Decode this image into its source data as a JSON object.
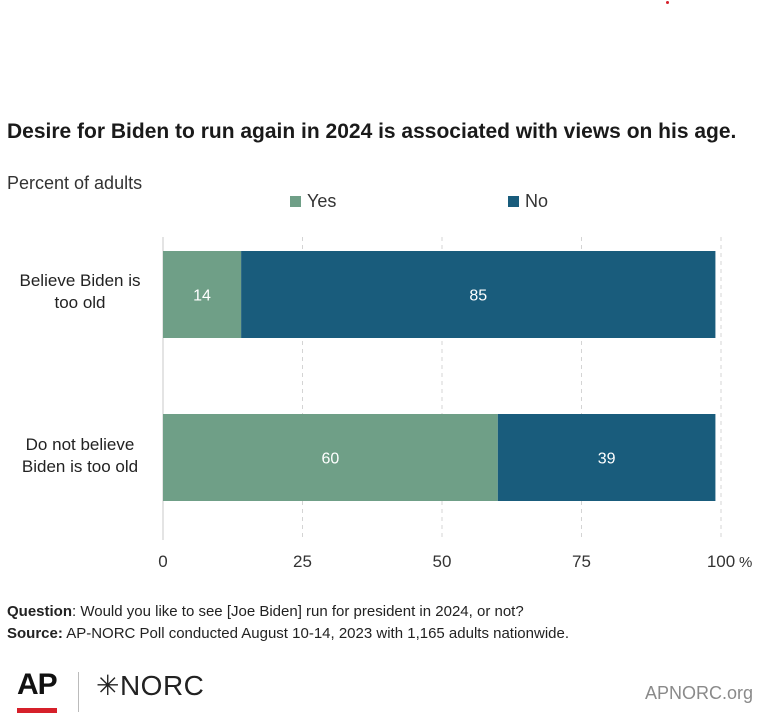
{
  "title": "Desire for Biden to run again in 2024 is associated with views on his age.",
  "subtitle": "Percent of adults",
  "legend": [
    {
      "label": "Yes",
      "color": "#6f9f87"
    },
    {
      "label": "No",
      "color": "#195c7c"
    }
  ],
  "chart_data": {
    "type": "bar",
    "orientation": "horizontal",
    "stacked": true,
    "categories": [
      "Believe Biden is too old",
      "Do not believe Biden is too old"
    ],
    "category_lines": [
      [
        "Believe Biden is",
        "too old"
      ],
      [
        "Do not believe",
        "Biden is too old"
      ]
    ],
    "series": [
      {
        "name": "Yes",
        "values": [
          14,
          60
        ],
        "color": "#6f9f87"
      },
      {
        "name": "No",
        "values": [
          85,
          39
        ],
        "color": "#195c7c"
      }
    ],
    "xlim": [
      0,
      100
    ],
    "xticks": [
      "0",
      "25",
      "50",
      "75",
      "100"
    ],
    "x_unit": "%",
    "grid": true,
    "legend_position": "top"
  },
  "footnotes": {
    "question_label": "Question",
    "question_text": ": Would you like to see [Joe Biden] run for president in 2024, or not?",
    "source_label": "Source:",
    "source_text": " AP-NORC Poll conducted August 10-14, 2023 with 1,165 adults nationwide."
  },
  "logos": {
    "ap": "AP",
    "norc": "✳NORC"
  },
  "site": "APNORC.org"
}
